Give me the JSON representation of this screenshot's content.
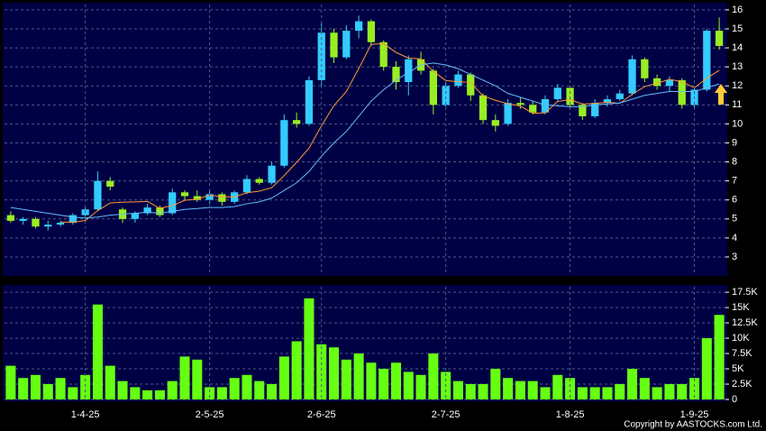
{
  "chart_data": [
    {
      "type": "candlestick",
      "up_color": "#33ccff",
      "down_color": "#99ee22",
      "open": [
        5.2,
        4.9,
        5.0,
        4.6,
        4.7,
        4.8,
        5.2,
        5.5,
        7.0,
        5.5,
        5.0,
        5.3,
        5.6,
        5.3,
        6.4,
        6.2,
        6.0,
        6.3,
        5.9,
        6.4,
        7.1,
        6.9,
        7.8,
        10.2,
        10.0,
        12.3,
        14.8,
        13.5,
        14.9,
        15.4,
        14.3,
        13.0,
        12.2,
        13.4,
        12.8,
        11.0,
        12.0,
        12.6,
        11.5,
        10.2,
        10.0,
        11.1,
        11.0,
        10.6,
        11.3,
        11.9,
        11.0,
        10.4,
        11.1,
        11.3,
        11.6,
        13.4,
        12.4,
        12.0,
        12.3,
        11.0,
        11.8,
        14.9
      ],
      "high": [
        5.4,
        5.1,
        5.1,
        4.9,
        4.9,
        5.3,
        5.6,
        7.5,
        7.2,
        5.6,
        5.4,
        5.8,
        5.7,
        6.6,
        6.5,
        6.5,
        6.5,
        6.4,
        6.5,
        7.3,
        7.2,
        8.0,
        10.5,
        10.6,
        12.5,
        15.3,
        15.0,
        15.2,
        15.7,
        15.5,
        14.4,
        13.3,
        13.6,
        13.8,
        12.9,
        12.2,
        12.8,
        12.7,
        11.6,
        10.5,
        11.3,
        11.4,
        11.2,
        11.5,
        12.1,
        12.0,
        11.1,
        11.3,
        11.5,
        11.8,
        13.6,
        13.5,
        12.6,
        12.5,
        12.4,
        12.0,
        15.0,
        15.6
      ],
      "low": [
        4.8,
        4.7,
        4.5,
        4.4,
        4.6,
        4.7,
        5.0,
        5.4,
        6.5,
        4.8,
        4.8,
        5.2,
        5.1,
        5.2,
        6.0,
        5.9,
        5.8,
        5.7,
        5.8,
        6.3,
        6.8,
        6.8,
        7.7,
        9.8,
        9.9,
        12.0,
        13.2,
        13.4,
        14.5,
        14.1,
        12.8,
        11.8,
        11.5,
        12.6,
        10.5,
        10.9,
        11.9,
        11.2,
        10.0,
        9.6,
        9.9,
        10.8,
        10.5,
        10.5,
        11.2,
        10.9,
        10.2,
        10.3,
        10.9,
        11.2,
        11.5,
        12.2,
        11.8,
        11.7,
        10.8,
        10.8,
        11.7,
        13.9
      ],
      "close": [
        4.9,
        5.0,
        4.6,
        4.7,
        4.8,
        5.2,
        5.5,
        7.0,
        6.7,
        5.0,
        5.3,
        5.6,
        5.2,
        6.4,
        6.2,
        6.0,
        6.3,
        5.9,
        6.4,
        7.1,
        6.9,
        7.8,
        10.2,
        10.0,
        12.3,
        14.8,
        13.5,
        14.9,
        15.4,
        14.3,
        13.0,
        12.2,
        13.4,
        12.8,
        11.0,
        12.0,
        12.6,
        11.5,
        10.2,
        9.9,
        11.1,
        11.0,
        10.6,
        11.3,
        11.9,
        11.0,
        10.4,
        11.1,
        11.3,
        11.6,
        13.4,
        12.4,
        12.0,
        12.3,
        11.0,
        11.8,
        14.9,
        14.1
      ],
      "lines": [
        {
          "color": "#ff9933",
          "values": [
            null,
            null,
            null,
            null,
            4.84,
            4.82,
            4.92,
            5.44,
            5.84,
            5.88,
            5.9,
            5.92,
            5.56,
            5.7,
            5.98,
            6.04,
            6.26,
            6.16,
            6.16,
            6.38,
            6.46,
            6.64,
            7.28,
            7.98,
            8.72,
            9.9,
            10.96,
            11.7,
            12.92,
            14.18,
            14.22,
            13.76,
            13.46,
            13.42,
            12.76,
            12.28,
            12.22,
            12.18,
            11.46,
            11.24,
            11.06,
            10.94,
            10.56,
            10.58,
            11.18,
            11.28,
            11.04,
            11.08,
            11.14,
            11.08,
            11.56,
            11.96,
            12.14,
            12.34,
            12.22,
            11.9,
            12.4,
            12.82
          ]
        },
        {
          "color": "#66bbff",
          "values": [
            5.6,
            5.5,
            5.4,
            5.3,
            5.2,
            5.1,
            5.05,
            5.1,
            5.2,
            5.25,
            5.3,
            5.35,
            5.3,
            5.4,
            5.5,
            5.55,
            5.6,
            5.6,
            5.65,
            5.8,
            5.9,
            6.1,
            6.5,
            6.9,
            7.5,
            8.3,
            9.0,
            9.6,
            10.4,
            11.2,
            11.8,
            12.3,
            12.7,
            13.1,
            13.2,
            13.1,
            12.9,
            12.6,
            12.3,
            12.0,
            11.6,
            11.4,
            11.2,
            11.0,
            10.95,
            10.9,
            10.9,
            11.0,
            11.05,
            11.1,
            11.3,
            11.5,
            11.6,
            11.7,
            11.7,
            11.7,
            11.9,
            12.1
          ]
        }
      ],
      "ylim": [
        2.05,
        16.28
      ],
      "yticks": [
        3,
        4,
        5,
        6,
        7,
        8,
        9,
        10,
        11,
        12,
        13,
        14,
        15,
        16
      ],
      "grid": true
    },
    {
      "type": "bar",
      "categories": [
        null,
        null,
        null,
        null,
        null,
        null,
        "1-4-25",
        null,
        null,
        null,
        null,
        null,
        null,
        null,
        null,
        null,
        "2-5-25",
        null,
        null,
        null,
        null,
        null,
        null,
        null,
        null,
        "2-6-25",
        null,
        null,
        null,
        null,
        null,
        null,
        null,
        null,
        null,
        "2-7-25",
        null,
        null,
        null,
        null,
        null,
        null,
        null,
        null,
        null,
        "1-8-25",
        null,
        null,
        null,
        null,
        null,
        null,
        null,
        null,
        null,
        "1-9-25",
        null,
        null
      ],
      "values": [
        5500,
        3500,
        4000,
        2500,
        3500,
        2000,
        4000,
        15500,
        5500,
        3000,
        2000,
        1500,
        1500,
        3000,
        7000,
        6500,
        2000,
        2000,
        3500,
        4000,
        3000,
        2500,
        7000,
        9500,
        16500,
        9000,
        8500,
        6500,
        7500,
        6000,
        5000,
        6000,
        4500,
        4000,
        7500,
        4500,
        3000,
        2500,
        2500,
        5000,
        3500,
        3000,
        3000,
        2000,
        4000,
        3500,
        2000,
        2000,
        2000,
        2500,
        5000,
        3500,
        2000,
        2500,
        2500,
        3500,
        10000,
        13800
      ],
      "color": "#66ff11",
      "ylim": [
        0,
        18400
      ],
      "yticks": [
        0,
        {
          "value": 2500,
          "label": "2.5K"
        },
        {
          "value": 5000,
          "label": "5K"
        },
        {
          "value": 7500,
          "label": "7.5K"
        },
        {
          "value": 10000,
          "label": "10K"
        },
        {
          "value": 12500,
          "label": "12.5K"
        },
        {
          "value": 15000,
          "label": "15K"
        },
        {
          "value": 17500,
          "label": "17.5K"
        }
      ],
      "grid": true
    }
  ],
  "footer": {
    "copyright": "Copyright by AASTOCKS.com Ltd."
  }
}
